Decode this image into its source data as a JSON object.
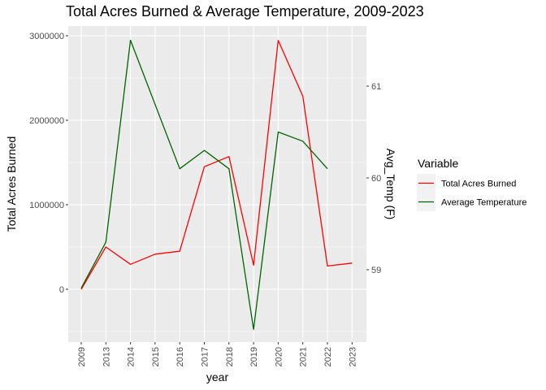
{
  "chart_data": {
    "type": "line",
    "title": "Total Acres Burned & Average Temperature, 2009-2023",
    "xlabel": "year",
    "ylabel": "Total Acres Burned",
    "y2label": "Avg_Temp (F)",
    "categories": [
      "2009",
      "2013",
      "2014",
      "2015",
      "2016",
      "2017",
      "2018",
      "2019",
      "2020",
      "2021",
      "2022",
      "2023"
    ],
    "ylim": [
      -600000,
      3150000
    ],
    "yticks": [
      0,
      1000000,
      2000000,
      3000000
    ],
    "ytick_labels": [
      "0",
      "1000000",
      "2000000",
      "3000000"
    ],
    "y2ticks": [
      59,
      60,
      61
    ],
    "y2ticks_labels": [
      "59",
      "60",
      "61"
    ],
    "series": [
      {
        "name": "Total Acres Burned",
        "color": "#ff0000",
        "axis": "left",
        "values": [
          0,
          500000,
          295000,
          415000,
          450000,
          1450000,
          1570000,
          285000,
          2945000,
          2285000,
          275000,
          310000
        ]
      },
      {
        "name": "Average Temperature",
        "color": "#006400",
        "axis": "right",
        "values": [
          58.8,
          59.3,
          61.5,
          null,
          60.1,
          60.3,
          60.1,
          58.35,
          60.5,
          60.4,
          60.1,
          null
        ]
      }
    ],
    "legend": {
      "title": "Variable",
      "placement": "right",
      "entries": [
        "Total Acres Burned",
        "Average Temperature"
      ]
    },
    "grid": true,
    "colors": {
      "panel_background": "#ebebeb",
      "grid": "#ffffff",
      "legend_key_background": "#f2f2f2"
    }
  }
}
